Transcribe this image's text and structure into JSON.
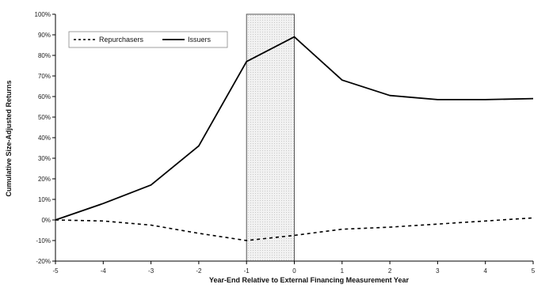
{
  "chart_data": {
    "type": "line",
    "title": "",
    "xlabel": "Year-End Relative to External Financing Measurement Year",
    "ylabel": "Cumulative Size-Adjusted Returns",
    "xlim": [
      -5,
      5
    ],
    "ylim": [
      -20,
      100
    ],
    "x_ticks": [
      -5,
      -4,
      -3,
      -2,
      -1,
      0,
      1,
      2,
      3,
      4,
      5
    ],
    "x_tick_labels": [
      "-5",
      "-4",
      "-3",
      "-2",
      "-1",
      "0",
      "1",
      "2",
      "3",
      "4",
      "5"
    ],
    "y_ticks": [
      -20,
      -10,
      0,
      10,
      20,
      30,
      40,
      50,
      60,
      70,
      80,
      90,
      100
    ],
    "y_tick_labels": [
      "-20%",
      "-10%",
      "0%",
      "10%",
      "20%",
      "30%",
      "40%",
      "50%",
      "60%",
      "70%",
      "80%",
      "90%",
      "100%"
    ],
    "highlight_region": {
      "x_from": -1,
      "x_to": 0
    },
    "legend_position": "top-left",
    "grid": false,
    "series": [
      {
        "name": "Repurchasers",
        "style": "dashed",
        "color": "#000000",
        "x": [
          -5,
          -4,
          -3,
          -2,
          -1,
          0,
          1,
          2,
          3,
          4,
          5
        ],
        "values": [
          0,
          -0.5,
          -2.5,
          -6.5,
          -10,
          -7.5,
          -4.5,
          -3.5,
          -2,
          -0.5,
          1
        ]
      },
      {
        "name": "Issuers",
        "style": "solid",
        "color": "#000000",
        "x": [
          -5,
          -4,
          -3,
          -2,
          -1,
          0,
          1,
          2,
          3,
          4,
          5
        ],
        "values": [
          0,
          8,
          17,
          36,
          77,
          89,
          68,
          60.5,
          58.5,
          58.5,
          59
        ]
      }
    ]
  }
}
